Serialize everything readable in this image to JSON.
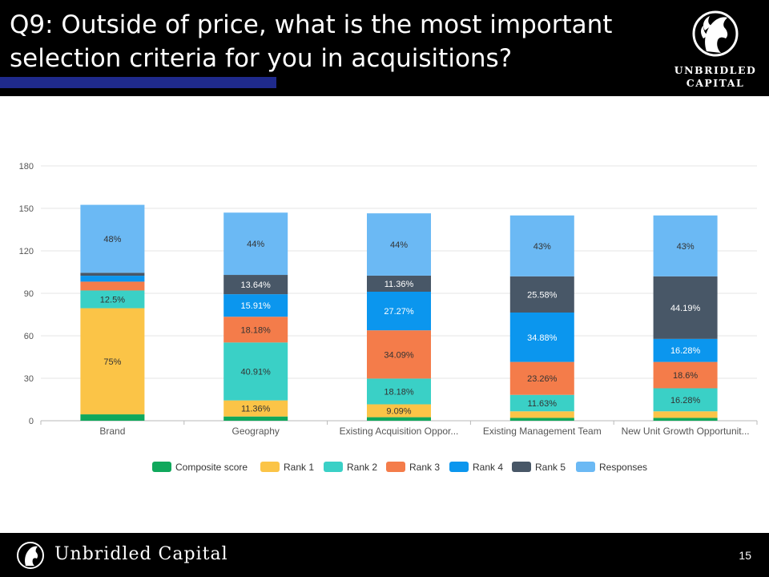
{
  "slide": {
    "title": "Q9: Outside of price, what is the most important selection criteria for you in acquisitions?",
    "logo_line1": "UNBRIDLED",
    "logo_line2": "CAPITAL",
    "footer_brand": "Unbridled Capital",
    "page_number": "15",
    "logo_icon": "horse-head-icon",
    "accent_color": "#1f2a8c"
  },
  "chart_data": {
    "type": "bar",
    "stacked": true,
    "ylim": [
      0,
      180
    ],
    "yticks": [
      0,
      30,
      60,
      90,
      120,
      150,
      180
    ],
    "grid": true,
    "legend_position": "bottom",
    "categories": [
      "Brand",
      "Geography",
      "Existing Acquisition Oppor...",
      "Existing Management Team",
      "New Unit Growth Opportunit..."
    ],
    "series": [
      {
        "name": "Composite score",
        "color": "#10a85c",
        "values": [
          4.5,
          3,
          2.5,
          2,
          2
        ],
        "labels": [
          "",
          "",
          "",
          "",
          ""
        ]
      },
      {
        "name": "Rank 1",
        "color": "#fbc447",
        "values": [
          75,
          11.36,
          9.09,
          4.65,
          4.65
        ],
        "labels": [
          "75%",
          "11.36%",
          "9.09%",
          "",
          ""
        ]
      },
      {
        "name": "Rank 2",
        "color": "#3ad0c6",
        "values": [
          12.5,
          40.91,
          18.18,
          11.63,
          16.28
        ],
        "labels": [
          "12.5%",
          "40.91%",
          "18.18%",
          "11.63%",
          "16.28%"
        ]
      },
      {
        "name": "Rank 3",
        "color": "#f47c4a",
        "values": [
          6.25,
          18.18,
          34.09,
          23.26,
          18.6
        ],
        "labels": [
          "",
          "18.18%",
          "34.09%",
          "23.26%",
          "18.6%"
        ]
      },
      {
        "name": "Rank 4",
        "color": "#0b96ee",
        "values": [
          4.17,
          15.91,
          27.27,
          34.88,
          16.28
        ],
        "labels": [
          "",
          "15.91%",
          "27.27%",
          "34.88%",
          "16.28%"
        ]
      },
      {
        "name": "Rank 5",
        "color": "#485767",
        "values": [
          2.08,
          13.64,
          11.36,
          25.58,
          44.19
        ],
        "labels": [
          "",
          "13.64%",
          "11.36%",
          "25.58%",
          "44.19%"
        ]
      },
      {
        "name": "Responses",
        "color": "#6bb9f4",
        "values": [
          48,
          44,
          44,
          43,
          43
        ],
        "labels": [
          "48%",
          "44%",
          "44%",
          "43%",
          "43%"
        ]
      }
    ]
  }
}
